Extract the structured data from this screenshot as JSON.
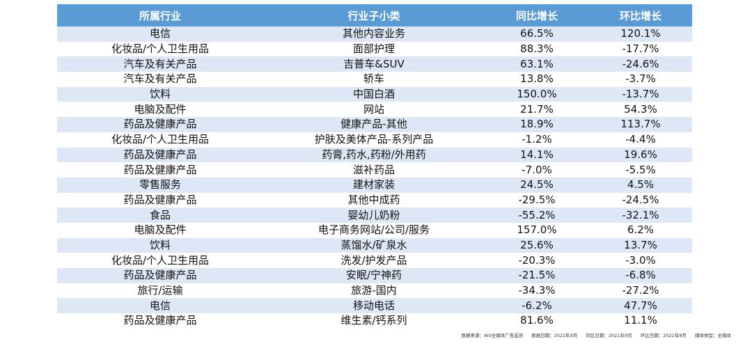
{
  "table": {
    "headers": [
      "所属行业",
      "行业子小类",
      "同比增长",
      "环比增长"
    ],
    "rows": [
      [
        "电信",
        "其他内容业务",
        "66.5%",
        "120.1%"
      ],
      [
        "化妆品/个人卫生用品",
        "面部护理",
        "88.3%",
        "-17.7%"
      ],
      [
        "汽车及有关产品",
        "吉普车&SUV",
        "63.1%",
        "-24.6%"
      ],
      [
        "汽车及有关产品",
        "轿车",
        "13.8%",
        "-3.7%"
      ],
      [
        "饮料",
        "中国白酒",
        "150.0%",
        "-13.7%"
      ],
      [
        "电脑及配件",
        "网站",
        "21.7%",
        "54.3%"
      ],
      [
        "药品及健康产品",
        "健康产品-其他",
        "18.9%",
        "113.7%"
      ],
      [
        "化妆品/个人卫生用品",
        "护肤及美体产品-系列产品",
        "-1.2%",
        "-4.4%"
      ],
      [
        "药品及健康产品",
        "药膏,药水,药粉/外用药",
        "14.1%",
        "19.6%"
      ],
      [
        "药品及健康产品",
        "滋补药品",
        "-7.0%",
        "-5.5%"
      ],
      [
        "零售服务",
        "建材家装",
        "24.5%",
        "4.5%"
      ],
      [
        "药品及健康产品",
        "其他中成药",
        "-29.5%",
        "-24.5%"
      ],
      [
        "食品",
        "婴幼儿奶粉",
        "-55.2%",
        "-32.1%"
      ],
      [
        "电脑及配件",
        "电子商务网站/公司/服务",
        "157.0%",
        "6.2%"
      ],
      [
        "饮料",
        "蒸馏水/矿泉水",
        "25.6%",
        "13.7%"
      ],
      [
        "化妆品/个人卫生用品",
        "洗发/护发产品",
        "-20.3%",
        "-3.0%"
      ],
      [
        "药品及健康产品",
        "安眠/宁神药",
        "-21.5%",
        "-6.8%"
      ],
      [
        "旅行/运输",
        "旅游-国内",
        "-34.3%",
        "-27.2%"
      ],
      [
        "电信",
        "移动电话",
        "-6.2%",
        "47.7%"
      ],
      [
        "药品及健康产品",
        "维生素/钙系列",
        "81.6%",
        "11.1%"
      ]
    ]
  },
  "footnote": {
    "source": "数据来源：AIS全媒体广告监测",
    "data_date": "数据日期：2022年9月",
    "yoy_date": "同比日期：2021年9月",
    "mom_date": "环比日期：2022年8月",
    "media_type": "媒体类型：全媒体"
  },
  "colors": {
    "header_bg": "#5b9bd5",
    "header_text": "#ffffff",
    "stripe_bg": "#dde7f5"
  }
}
